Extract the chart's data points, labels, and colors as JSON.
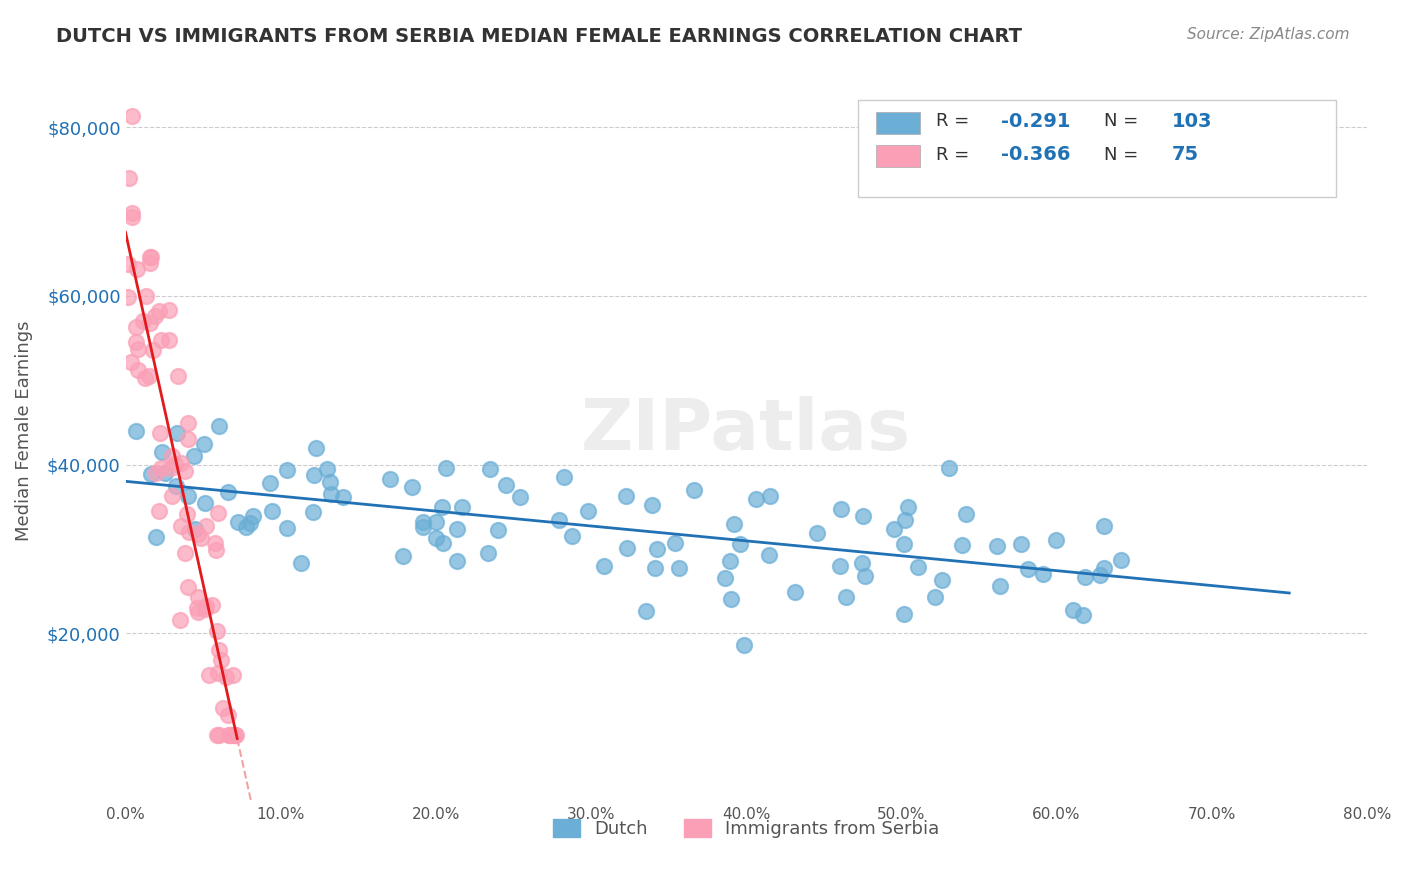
{
  "title": "DUTCH VS IMMIGRANTS FROM SERBIA MEDIAN FEMALE EARNINGS CORRELATION CHART",
  "source": "Source: ZipAtlas.com",
  "ylabel": "Median Female Earnings",
  "watermark": "ZIPatlas",
  "legend_r1_val": "-0.291",
  "legend_n1_val": "103",
  "legend_r2_val": "-0.366",
  "legend_n2_val": "75",
  "ytick_labels": [
    "$20,000",
    "$40,000",
    "$60,000",
    "$80,000"
  ],
  "ytick_values": [
    20000,
    40000,
    60000,
    80000
  ],
  "ymin": 0,
  "ymax": 88000,
  "xmin": 0.0,
  "xmax": 0.8,
  "dutch_color": "#6baed6",
  "serbia_color": "#fa9fb5",
  "dutch_line_color": "#2171b5",
  "serbia_line_color": "#e31a1c",
  "background_color": "#ffffff",
  "grid_color": "#cccccc",
  "title_color": "#333333",
  "value_color": "#2171b5",
  "label_color": "#333333",
  "axis_color": "#888888"
}
